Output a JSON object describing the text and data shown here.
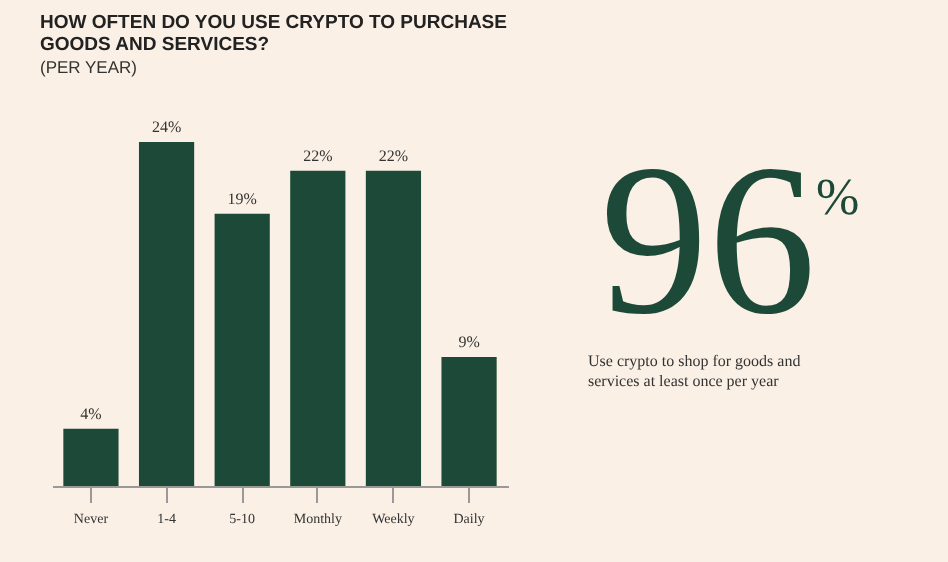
{
  "chart_data": [
    {
      "type": "bar",
      "title": "HOW OFTEN DO YOU USE CRYPTO TO PURCHASE GOODS AND SERVICES?",
      "subtitle": "(PER YEAR)",
      "categories": [
        "Never",
        "1-4",
        "5-10",
        "Monthly",
        "Weekly",
        "Daily"
      ],
      "values": [
        4,
        24,
        19,
        22,
        22,
        9
      ],
      "color": "#1d4a38",
      "value_labels": [
        "4%",
        "24%",
        "19%",
        "22%",
        "22%",
        "9%"
      ]
    },
    {
      "type": "other",
      "annotations": [
        "96$^{%}$",
        "Use crypto to shop for goods and services at least once per year"
      ]
    }
  ]
}
